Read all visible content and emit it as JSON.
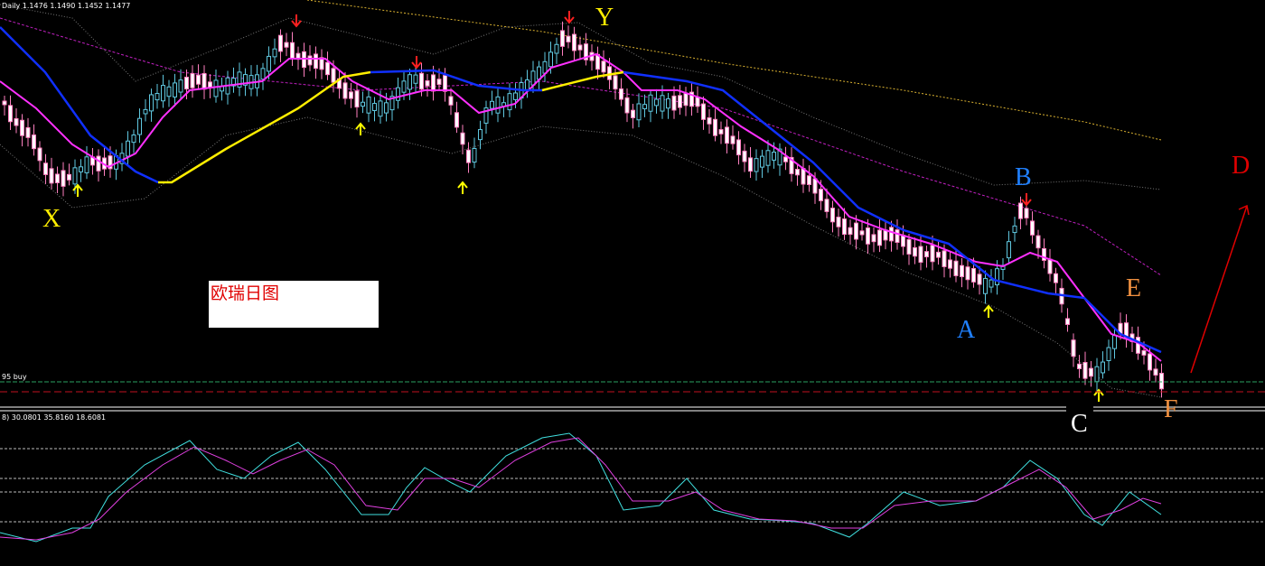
{
  "header": {
    "info": "Daily  1.1476 1.1490 1.1452 1.1477"
  },
  "price_panel": {
    "buy_line_label": "95 buy",
    "note": "欧瑞日图",
    "wave_labels": {
      "X": "X",
      "Y": "Y",
      "A": "A",
      "B": "B",
      "C": "C",
      "D": "D",
      "E": "E",
      "F": "F"
    }
  },
  "indicator_panel": {
    "info": "8) 30.0801 35.8160 18.6081"
  }
}
